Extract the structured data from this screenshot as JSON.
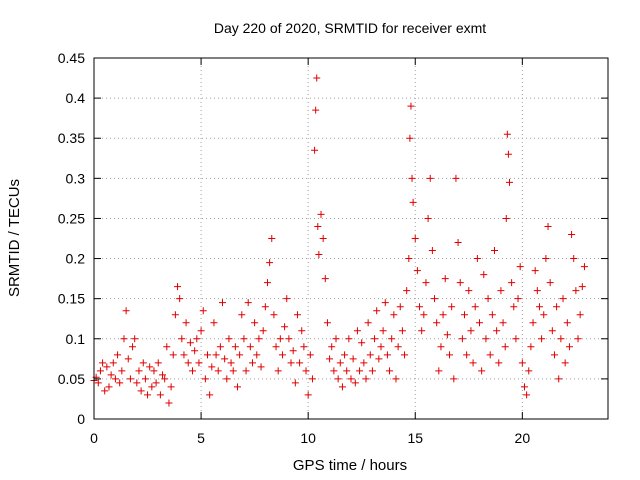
{
  "chart_data": {
    "type": "scatter",
    "title": "Day 220 of 2020, SRMTID for receiver exmt",
    "xlabel": "GPS time / hours",
    "ylabel": "SRMTID / TECUs",
    "xlim": [
      0,
      24
    ],
    "ylim": [
      0,
      0.45
    ],
    "xticks": [
      0,
      5,
      10,
      15,
      20
    ],
    "yticks": [
      0,
      0.05,
      0.1,
      0.15,
      0.2,
      0.25,
      0.3,
      0.35,
      0.4,
      0.45
    ],
    "ytick_labels": [
      "0",
      "0.05",
      "0.1",
      "0.15",
      "0.2",
      "0.25",
      "0.3",
      "0.35",
      "0.4",
      "0.45"
    ],
    "grid": true,
    "marker": "+",
    "marker_color": "#e00000",
    "series": [
      {
        "name": "SRMTID",
        "points": [
          [
            0.0,
            0.048
          ],
          [
            0.1,
            0.052
          ],
          [
            0.2,
            0.045
          ],
          [
            0.3,
            0.06
          ],
          [
            0.4,
            0.07
          ],
          [
            0.5,
            0.035
          ],
          [
            0.6,
            0.065
          ],
          [
            0.7,
            0.04
          ],
          [
            0.8,
            0.055
          ],
          [
            0.9,
            0.07
          ],
          [
            1.0,
            0.05
          ],
          [
            1.1,
            0.08
          ],
          [
            1.2,
            0.045
          ],
          [
            1.3,
            0.06
          ],
          [
            1.4,
            0.1
          ],
          [
            1.5,
            0.135
          ],
          [
            1.6,
            0.075
          ],
          [
            1.7,
            0.05
          ],
          [
            1.8,
            0.09
          ],
          [
            1.9,
            0.1
          ],
          [
            2.0,
            0.045
          ],
          [
            2.1,
            0.06
          ],
          [
            2.2,
            0.035
          ],
          [
            2.3,
            0.07
          ],
          [
            2.4,
            0.05
          ],
          [
            2.5,
            0.03
          ],
          [
            2.6,
            0.065
          ],
          [
            2.7,
            0.04
          ],
          [
            2.8,
            0.06
          ],
          [
            2.9,
            0.045
          ],
          [
            3.0,
            0.07
          ],
          [
            3.1,
            0.03
          ],
          [
            3.2,
            0.055
          ],
          [
            3.3,
            0.05
          ],
          [
            3.4,
            0.09
          ],
          [
            3.5,
            0.02
          ],
          [
            3.6,
            0.04
          ],
          [
            3.7,
            0.08
          ],
          [
            3.8,
            0.13
          ],
          [
            3.9,
            0.165
          ],
          [
            4.0,
            0.15
          ],
          [
            4.1,
            0.1
          ],
          [
            4.2,
            0.08
          ],
          [
            4.3,
            0.12
          ],
          [
            4.4,
            0.07
          ],
          [
            4.5,
            0.095
          ],
          [
            4.6,
            0.06
          ],
          [
            4.7,
            0.085
          ],
          [
            4.8,
            0.1
          ],
          [
            4.9,
            0.07
          ],
          [
            5.0,
            0.11
          ],
          [
            5.1,
            0.135
          ],
          [
            5.2,
            0.05
          ],
          [
            5.3,
            0.08
          ],
          [
            5.4,
            0.03
          ],
          [
            5.5,
            0.065
          ],
          [
            5.6,
            0.12
          ],
          [
            5.7,
            0.08
          ],
          [
            5.8,
            0.06
          ],
          [
            5.9,
            0.09
          ],
          [
            6.0,
            0.145
          ],
          [
            6.1,
            0.075
          ],
          [
            6.2,
            0.05
          ],
          [
            6.3,
            0.1
          ],
          [
            6.4,
            0.07
          ],
          [
            6.5,
            0.06
          ],
          [
            6.6,
            0.09
          ],
          [
            6.7,
            0.04
          ],
          [
            6.8,
            0.08
          ],
          [
            6.9,
            0.13
          ],
          [
            7.0,
            0.1
          ],
          [
            7.1,
            0.06
          ],
          [
            7.2,
            0.145
          ],
          [
            7.3,
            0.09
          ],
          [
            7.4,
            0.07
          ],
          [
            7.5,
            0.12
          ],
          [
            7.6,
            0.08
          ],
          [
            7.7,
            0.1
          ],
          [
            7.8,
            0.065
          ],
          [
            7.9,
            0.11
          ],
          [
            8.0,
            0.14
          ],
          [
            8.1,
            0.17
          ],
          [
            8.2,
            0.195
          ],
          [
            8.3,
            0.225
          ],
          [
            8.4,
            0.13
          ],
          [
            8.5,
            0.09
          ],
          [
            8.6,
            0.06
          ],
          [
            8.7,
            0.1
          ],
          [
            8.8,
            0.08
          ],
          [
            8.9,
            0.115
          ],
          [
            9.0,
            0.15
          ],
          [
            9.1,
            0.1
          ],
          [
            9.2,
            0.07
          ],
          [
            9.3,
            0.085
          ],
          [
            9.4,
            0.045
          ],
          [
            9.5,
            0.13
          ],
          [
            9.6,
            0.07
          ],
          [
            9.7,
            0.11
          ],
          [
            9.8,
            0.09
          ],
          [
            9.9,
            0.06
          ],
          [
            10.0,
            0.03
          ],
          [
            10.1,
            0.08
          ],
          [
            10.2,
            0.05
          ],
          [
            10.3,
            0.335
          ],
          [
            10.35,
            0.385
          ],
          [
            10.4,
            0.425
          ],
          [
            10.45,
            0.24
          ],
          [
            10.5,
            0.205
          ],
          [
            10.6,
            0.255
          ],
          [
            10.7,
            0.225
          ],
          [
            10.8,
            0.175
          ],
          [
            10.9,
            0.12
          ],
          [
            11.0,
            0.075
          ],
          [
            11.1,
            0.09
          ],
          [
            11.2,
            0.06
          ],
          [
            11.3,
            0.1
          ],
          [
            11.4,
            0.05
          ],
          [
            11.5,
            0.07
          ],
          [
            11.6,
            0.04
          ],
          [
            11.7,
            0.08
          ],
          [
            11.8,
            0.06
          ],
          [
            11.9,
            0.1
          ],
          [
            12.0,
            0.05
          ],
          [
            12.1,
            0.075
          ],
          [
            12.2,
            0.045
          ],
          [
            12.3,
            0.11
          ],
          [
            12.4,
            0.06
          ],
          [
            12.5,
            0.095
          ],
          [
            12.6,
            0.07
          ],
          [
            12.7,
            0.05
          ],
          [
            12.8,
            0.12
          ],
          [
            12.9,
            0.08
          ],
          [
            13.0,
            0.06
          ],
          [
            13.1,
            0.1
          ],
          [
            13.2,
            0.135
          ],
          [
            13.3,
            0.075
          ],
          [
            13.4,
            0.09
          ],
          [
            13.5,
            0.11
          ],
          [
            13.6,
            0.145
          ],
          [
            13.7,
            0.08
          ],
          [
            13.8,
            0.06
          ],
          [
            13.9,
            0.1
          ],
          [
            14.0,
            0.13
          ],
          [
            14.1,
            0.05
          ],
          [
            14.2,
            0.09
          ],
          [
            14.3,
            0.14
          ],
          [
            14.4,
            0.11
          ],
          [
            14.5,
            0.08
          ],
          [
            14.6,
            0.16
          ],
          [
            14.7,
            0.2
          ],
          [
            14.75,
            0.35
          ],
          [
            14.8,
            0.39
          ],
          [
            14.85,
            0.3
          ],
          [
            14.9,
            0.27
          ],
          [
            15.0,
            0.225
          ],
          [
            15.1,
            0.185
          ],
          [
            15.2,
            0.14
          ],
          [
            15.3,
            0.11
          ],
          [
            15.4,
            0.13
          ],
          [
            15.5,
            0.17
          ],
          [
            15.6,
            0.25
          ],
          [
            15.7,
            0.3
          ],
          [
            15.8,
            0.21
          ],
          [
            15.9,
            0.15
          ],
          [
            16.0,
            0.12
          ],
          [
            16.1,
            0.06
          ],
          [
            16.2,
            0.09
          ],
          [
            16.3,
            0.13
          ],
          [
            16.4,
            0.175
          ],
          [
            16.5,
            0.105
          ],
          [
            16.6,
            0.08
          ],
          [
            16.7,
            0.14
          ],
          [
            16.8,
            0.05
          ],
          [
            16.9,
            0.3
          ],
          [
            17.0,
            0.22
          ],
          [
            17.1,
            0.17
          ],
          [
            17.2,
            0.1
          ],
          [
            17.3,
            0.13
          ],
          [
            17.4,
            0.08
          ],
          [
            17.5,
            0.16
          ],
          [
            17.6,
            0.11
          ],
          [
            17.7,
            0.07
          ],
          [
            17.8,
            0.14
          ],
          [
            17.9,
            0.2
          ],
          [
            18.0,
            0.12
          ],
          [
            18.1,
            0.06
          ],
          [
            18.2,
            0.18
          ],
          [
            18.3,
            0.1
          ],
          [
            18.4,
            0.15
          ],
          [
            18.5,
            0.08
          ],
          [
            18.6,
            0.13
          ],
          [
            18.7,
            0.21
          ],
          [
            18.8,
            0.11
          ],
          [
            18.9,
            0.07
          ],
          [
            19.0,
            0.16
          ],
          [
            19.1,
            0.12
          ],
          [
            19.2,
            0.09
          ],
          [
            19.25,
            0.25
          ],
          [
            19.3,
            0.355
          ],
          [
            19.35,
            0.33
          ],
          [
            19.4,
            0.295
          ],
          [
            19.5,
            0.17
          ],
          [
            19.6,
            0.14
          ],
          [
            19.7,
            0.1
          ],
          [
            19.8,
            0.15
          ],
          [
            19.9,
            0.19
          ],
          [
            20.0,
            0.07
          ],
          [
            20.1,
            0.04
          ],
          [
            20.2,
            0.03
          ],
          [
            20.3,
            0.06
          ],
          [
            20.4,
            0.09
          ],
          [
            20.5,
            0.12
          ],
          [
            20.6,
            0.185
          ],
          [
            20.7,
            0.16
          ],
          [
            20.8,
            0.14
          ],
          [
            20.9,
            0.1
          ],
          [
            21.0,
            0.13
          ],
          [
            21.1,
            0.2
          ],
          [
            21.2,
            0.24
          ],
          [
            21.3,
            0.17
          ],
          [
            21.4,
            0.11
          ],
          [
            21.5,
            0.08
          ],
          [
            21.6,
            0.14
          ],
          [
            21.7,
            0.05
          ],
          [
            21.8,
            0.1
          ],
          [
            21.9,
            0.15
          ],
          [
            22.0,
            0.07
          ],
          [
            22.1,
            0.12
          ],
          [
            22.2,
            0.09
          ],
          [
            22.3,
            0.23
          ],
          [
            22.4,
            0.2
          ],
          [
            22.5,
            0.16
          ],
          [
            22.6,
            0.1
          ],
          [
            22.7,
            0.13
          ],
          [
            22.8,
            0.165
          ],
          [
            22.9,
            0.19
          ]
        ]
      }
    ]
  }
}
